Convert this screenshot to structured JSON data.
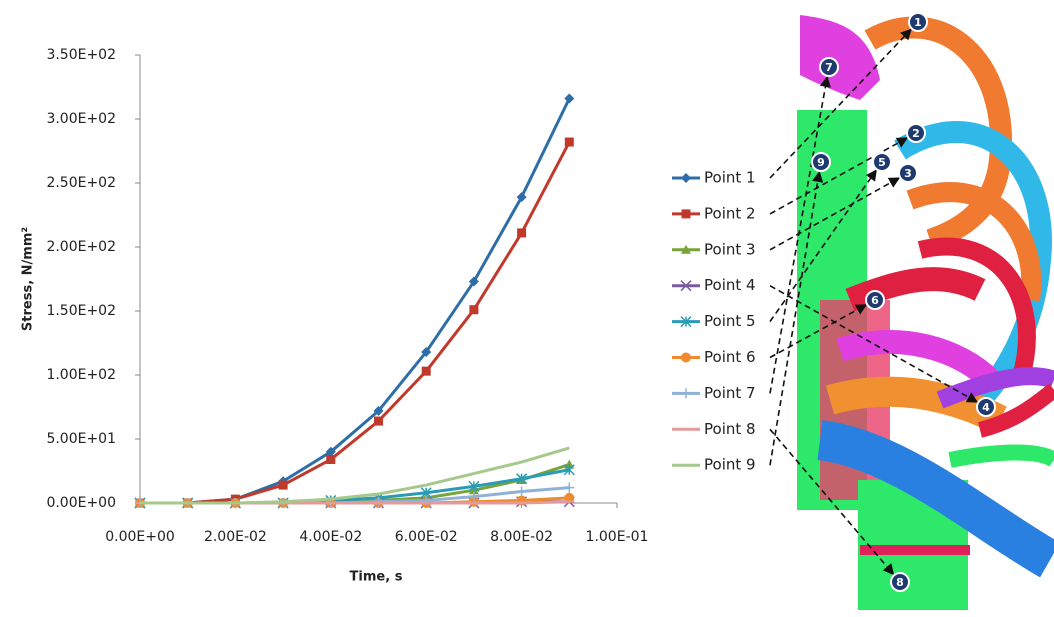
{
  "chart_data": {
    "type": "line",
    "y_label": "Stress, N/mm²",
    "x_label": "Time, s",
    "x": [
      0,
      0.01,
      0.02,
      0.03,
      0.04,
      0.05,
      0.06,
      0.07,
      0.08,
      0.09
    ],
    "xlim": [
      0,
      0.1
    ],
    "xticks": [
      {
        "value": 0,
        "label": "0.00E+00"
      },
      {
        "value": 0.02,
        "label": "2.00E-02"
      },
      {
        "value": 0.04,
        "label": "4.00E-02"
      },
      {
        "value": 0.06,
        "label": "6.00E-02"
      },
      {
        "value": 0.08,
        "label": "8.00E-02"
      },
      {
        "value": 0.1,
        "label": "1.00E-01"
      }
    ],
    "ylim": [
      0,
      350
    ],
    "yticks": [
      {
        "value": 0,
        "label": "0.00E+00"
      },
      {
        "value": 50,
        "label": "5.00E+01"
      },
      {
        "value": 100,
        "label": "1.00E+02"
      },
      {
        "value": 150,
        "label": "1.50E+02"
      },
      {
        "value": 200,
        "label": "2.00E+02"
      },
      {
        "value": 250,
        "label": "2.50E+02"
      },
      {
        "value": 300,
        "label": "3.00E+02"
      },
      {
        "value": 350,
        "label": "3.50E+02"
      }
    ],
    "series": [
      {
        "name": "Point 1",
        "color": "#2e6ea8",
        "marker": "diamond",
        "values": [
          0,
          0,
          3,
          17,
          40,
          72,
          118,
          173,
          239,
          316
        ]
      },
      {
        "name": "Point 2",
        "color": "#c0392b",
        "marker": "square",
        "values": [
          0,
          0,
          3,
          14,
          34,
          64,
          103,
          151,
          211,
          282
        ]
      },
      {
        "name": "Point 3",
        "color": "#77a33a",
        "marker": "triangle",
        "values": [
          0,
          0,
          0,
          0,
          1,
          2,
          4,
          10,
          18,
          30
        ]
      },
      {
        "name": "Point 4",
        "color": "#7d5aa0",
        "marker": "x",
        "values": [
          0,
          0,
          0,
          0,
          0,
          0,
          0,
          0,
          1,
          1
        ]
      },
      {
        "name": "Point 5",
        "color": "#2a9bb7",
        "marker": "star",
        "values": [
          0,
          0,
          0,
          0,
          2,
          4,
          8,
          13,
          19,
          26
        ]
      },
      {
        "name": "Point 6",
        "color": "#ef8a2d",
        "marker": "circle",
        "values": [
          0,
          0,
          0,
          0,
          0,
          0,
          0,
          1,
          2,
          4
        ]
      },
      {
        "name": "Point 7",
        "color": "#8fb1d8",
        "marker": "plus",
        "values": [
          0,
          0,
          0,
          0,
          0,
          1,
          2,
          5,
          9,
          12
        ]
      },
      {
        "name": "Point 8",
        "color": "#e39a9a",
        "marker": "dash",
        "values": [
          0,
          0,
          0,
          0,
          0,
          0,
          0,
          0,
          0,
          1
        ]
      },
      {
        "name": "Point 9",
        "color": "#a5c98b",
        "marker": "none",
        "values": [
          0,
          0,
          0,
          1,
          3,
          7,
          14,
          23,
          32,
          43
        ]
      }
    ]
  },
  "figure": {
    "callouts": [
      "1",
      "2",
      "3",
      "4",
      "5",
      "6",
      "7",
      "8",
      "9"
    ]
  }
}
